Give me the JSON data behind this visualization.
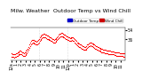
{
  "title": "Milw. Weather  Outdoor Temp vs Wind Chill",
  "legend_labels": [
    "Outdoor Temp",
    "Wind Chill"
  ],
  "legend_colors": [
    "#0000cc",
    "#cc0000"
  ],
  "bg_color": "#ffffff",
  "plot_bg": "#ffffff",
  "ylim": [
    -5,
    58
  ],
  "ytick_values": [
    36,
    54
  ],
  "vline_positions": [
    35,
    71
  ],
  "vline_color": "#bbbbbb",
  "x_data": [
    0,
    1,
    2,
    3,
    4,
    5,
    6,
    7,
    8,
    9,
    10,
    11,
    12,
    13,
    14,
    15,
    16,
    17,
    18,
    19,
    20,
    21,
    22,
    23,
    24,
    25,
    26,
    27,
    28,
    29,
    30,
    31,
    32,
    33,
    34,
    35,
    36,
    37,
    38,
    39,
    40,
    41,
    42,
    43,
    44,
    45,
    46,
    47,
    48,
    49,
    50,
    51,
    52,
    53,
    54,
    55,
    56,
    57,
    58,
    59,
    60,
    61,
    62,
    63,
    64,
    65,
    66,
    67,
    68,
    69,
    70,
    71,
    72,
    73,
    74,
    75,
    76,
    77,
    78,
    79,
    80,
    81,
    82,
    83,
    84,
    85,
    86,
    87,
    88,
    89,
    90,
    91,
    92,
    93,
    94,
    95,
    96,
    97,
    98,
    99,
    100,
    101,
    102,
    103,
    104,
    105,
    106,
    107,
    108,
    109,
    110,
    111,
    112,
    113,
    114,
    115,
    116,
    117,
    118,
    119,
    120,
    121,
    122,
    123,
    124,
    125,
    126,
    127,
    128,
    129,
    130,
    131,
    132,
    133,
    134,
    135,
    136,
    137,
    138,
    139,
    140,
    141,
    142,
    143
  ],
  "y_temp": [
    8,
    8,
    7,
    7,
    6,
    7,
    8,
    9,
    10,
    11,
    12,
    13,
    13,
    12,
    11,
    10,
    9,
    10,
    11,
    13,
    15,
    18,
    21,
    25,
    29,
    32,
    34,
    35,
    35,
    34,
    33,
    32,
    31,
    32,
    34,
    36,
    39,
    41,
    43,
    44,
    45,
    46,
    46,
    45,
    44,
    43,
    43,
    42,
    41,
    40,
    39,
    38,
    37,
    36,
    35,
    36,
    37,
    38,
    40,
    42,
    44,
    46,
    47,
    48,
    48,
    47,
    46,
    45,
    44,
    43,
    42,
    41,
    40,
    39,
    38,
    38,
    39,
    40,
    39,
    38,
    36,
    34,
    32,
    30,
    29,
    28,
    27,
    26,
    25,
    24,
    23,
    22,
    21,
    21,
    22,
    23,
    25,
    26,
    28,
    29,
    30,
    29,
    28,
    27,
    26,
    25,
    24,
    23,
    22,
    21,
    20,
    19,
    19,
    18,
    17,
    17,
    16,
    16,
    15,
    15,
    14,
    14,
    13,
    13,
    13,
    13,
    12,
    12,
    12,
    12,
    11,
    11,
    11,
    10,
    10,
    10,
    10,
    9,
    9,
    9,
    9,
    8,
    8,
    8
  ],
  "y_windchill": [
    2,
    2,
    1,
    1,
    0,
    1,
    2,
    3,
    4,
    5,
    6,
    7,
    7,
    6,
    5,
    4,
    3,
    4,
    5,
    7,
    9,
    12,
    15,
    19,
    23,
    26,
    28,
    29,
    29,
    28,
    27,
    26,
    25,
    26,
    28,
    30,
    33,
    35,
    37,
    38,
    39,
    40,
    40,
    39,
    38,
    37,
    37,
    36,
    35,
    34,
    33,
    32,
    31,
    30,
    29,
    30,
    31,
    32,
    34,
    36,
    38,
    40,
    41,
    42,
    42,
    41,
    40,
    39,
    38,
    37,
    36,
    35,
    34,
    33,
    32,
    32,
    33,
    34,
    33,
    32,
    30,
    28,
    26,
    24,
    23,
    22,
    21,
    20,
    19,
    18,
    17,
    16,
    15,
    15,
    16,
    17,
    19,
    20,
    22,
    23,
    24,
    23,
    22,
    21,
    20,
    19,
    18,
    17,
    16,
    15,
    14,
    13,
    13,
    12,
    11,
    11,
    10,
    10,
    9,
    9,
    8,
    8,
    7,
    7,
    7,
    7,
    6,
    6,
    6,
    6,
    5,
    5,
    5,
    4,
    4,
    4,
    4,
    3,
    3,
    3,
    3,
    2,
    2,
    2
  ],
  "title_fontsize": 4.5,
  "tick_fontsize": 3.5,
  "dot_size": 0.8,
  "num_points": 144,
  "x_tick_step": 6,
  "time_labels": [
    "12a",
    "1",
    "2",
    "3",
    "4",
    "5",
    "6",
    "7",
    "8",
    "9",
    "10",
    "11",
    "12p",
    "1",
    "2",
    "3",
    "4",
    "5",
    "6",
    "7",
    "8",
    "9",
    "10",
    "11"
  ]
}
